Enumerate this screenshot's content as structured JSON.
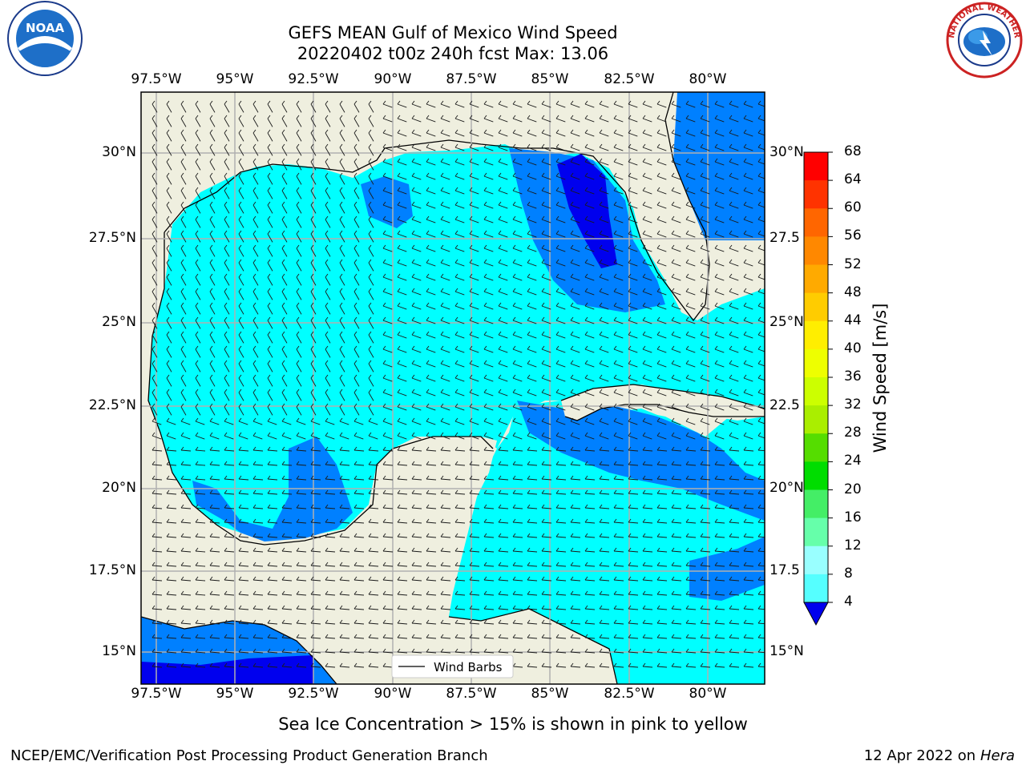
{
  "title": {
    "line1": "GEFS MEAN Gulf of Mexico Wind Speed",
    "line2": "20220402 t00z 240h fcst   Max: 13.06"
  },
  "logos": {
    "left_text": "NOAA",
    "left_ring_text": "NATIONAL OCEANIC AND ATMOSPHERIC ADMINISTRATION · U.S. DEPARTMENT OF COMMERCE",
    "right_ring_text": "NATIONAL WEATHER SERVICE"
  },
  "axes": {
    "lon_labels": [
      "97.5°W",
      "95°W",
      "92.5°W",
      "90°W",
      "87.5°W",
      "85°W",
      "82.5°W",
      "80°W"
    ],
    "lat_labels_left": [
      "30°N",
      "27.5°N",
      "25°N",
      "22.5°N",
      "20°N",
      "17.5°N",
      "15°N"
    ],
    "lat_labels_right": [
      "30°N",
      "27.5",
      "25°N",
      "22.5",
      "20°N",
      "17.5",
      "15°N"
    ]
  },
  "legend": {
    "label": "Wind Barbs"
  },
  "colorbar": {
    "label": "Wind Speed [m/s]",
    "ticks": [
      "68",
      "64",
      "60",
      "56",
      "52",
      "48",
      "44",
      "40",
      "36",
      "32",
      "28",
      "24",
      "20",
      "16",
      "12",
      "8",
      "4"
    ],
    "colors": [
      "#ff0000",
      "#ff3300",
      "#ff6600",
      "#ff8800",
      "#ffaa00",
      "#ffcc00",
      "#ffee00",
      "#eeff00",
      "#ccff00",
      "#aaee00",
      "#55dd00",
      "#00dd00",
      "#44ee66",
      "#66ffaa",
      "#99ffff",
      "#55ffff",
      "#00ffff",
      "#0088ff",
      "#0000ee"
    ],
    "extend_color": "#0000ee"
  },
  "colors": {
    "land": "#efefdf",
    "sea_cyan": "#00ffff",
    "sea_light": "#55ffff",
    "sea_blue": "#0080ff",
    "sea_dark": "#0000ee",
    "grid": "#b0b0b0"
  },
  "subtitle": "Sea Ice Concentration > 15% is shown in pink to yellow",
  "footer": {
    "left": "NCEP/EMC/Verification Post Processing Product Generation Branch",
    "right_date": "12 Apr 2022 on ",
    "right_host": "Hera"
  }
}
